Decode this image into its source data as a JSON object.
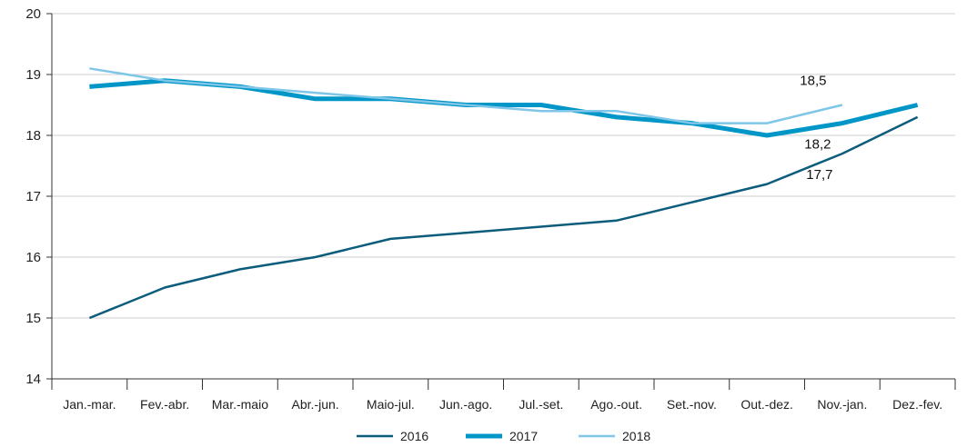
{
  "chart_data": {
    "type": "line",
    "title": "",
    "xlabel": "",
    "ylabel": "",
    "categories": [
      "Jan.-mar.",
      "Fev.-abr.",
      "Mar.-maio",
      "Abr.-jun.",
      "Maio-jul.",
      "Jun.-ago.",
      "Jul.-set.",
      "Ago.-out.",
      "Set.-nov.",
      "Out.-dez.",
      "Nov.-jan.",
      "Dez.-fev."
    ],
    "ylim": [
      14,
      20
    ],
    "yticks": [
      "14",
      "15",
      "16",
      "17",
      "18",
      "19",
      "20"
    ],
    "grid": "horizontal",
    "legend_position": "bottom",
    "series": [
      {
        "name": "2016",
        "color": "#0c5c7c",
        "values": [
          15.0,
          15.5,
          15.8,
          16.0,
          16.3,
          16.4,
          16.5,
          16.6,
          16.9,
          17.2,
          17.7,
          18.3
        ]
      },
      {
        "name": "2017",
        "color": "#0096c7",
        "values": [
          18.8,
          18.9,
          18.8,
          18.6,
          18.6,
          18.5,
          18.5,
          18.3,
          18.2,
          18.0,
          18.2,
          18.5
        ]
      },
      {
        "name": "2018",
        "color": "#7fc6e8",
        "values": [
          19.1,
          18.9,
          18.8,
          18.7,
          18.6,
          18.5,
          18.4,
          18.4,
          18.2,
          18.2,
          18.5,
          null
        ]
      }
    ],
    "annotations": [
      {
        "text": "18,5",
        "series": "2018",
        "index": 10
      },
      {
        "text": "18,2",
        "series": "2017",
        "index": 10
      },
      {
        "text": "17,7",
        "series": "2016",
        "index": 10
      }
    ]
  }
}
